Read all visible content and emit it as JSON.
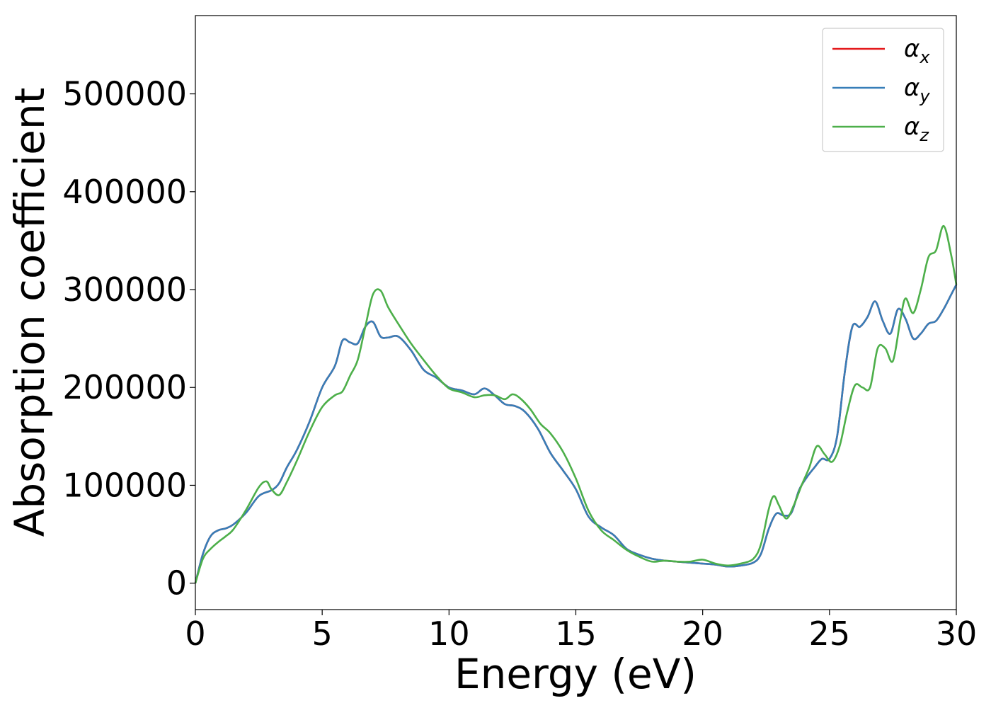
{
  "chart_data": {
    "type": "line",
    "title": "",
    "xlabel": "Energy (eV)",
    "ylabel": "Absorption coefficient",
    "xlim": [
      0,
      30
    ],
    "ylim": [
      -27000,
      580000
    ],
    "xticks": [
      0,
      5,
      10,
      15,
      20,
      25,
      30
    ],
    "xtick_labels": [
      "0",
      "5",
      "10",
      "15",
      "20",
      "25",
      "30"
    ],
    "yticks": [
      0,
      100000,
      200000,
      300000,
      400000,
      500000
    ],
    "ytick_labels": [
      "0",
      "100000",
      "200000",
      "300000",
      "400000",
      "500000"
    ],
    "grid": false,
    "legend_position": "top-right",
    "series": [
      {
        "name": "α",
        "subscript": "x",
        "color": "#e41a1c",
        "x": [
          0,
          0.3,
          0.6,
          0.9,
          1.2,
          1.5,
          2.0,
          2.5,
          3.0,
          3.3,
          3.6,
          4.0,
          4.5,
          5.0,
          5.5,
          5.8,
          6.1,
          6.4,
          6.7,
          7.0,
          7.3,
          7.6,
          8.0,
          8.5,
          9.0,
          9.5,
          10.0,
          10.5,
          11.0,
          11.4,
          11.8,
          12.2,
          12.6,
          13.0,
          13.5,
          14.0,
          14.5,
          15.0,
          15.5,
          16.0,
          16.5,
          17.0,
          17.5,
          18.0,
          18.5,
          19.0,
          19.5,
          20.0,
          20.5,
          21.0,
          21.5,
          22.0,
          22.3,
          22.6,
          22.9,
          23.2,
          23.5,
          23.8,
          24.1,
          24.4,
          24.7,
          25.0,
          25.3,
          25.6,
          25.9,
          26.2,
          26.5,
          26.8,
          27.1,
          27.4,
          27.7,
          28.0,
          28.3,
          28.6,
          28.9,
          29.2,
          29.5,
          29.8,
          30.0
        ],
        "values": [
          0,
          30000,
          48000,
          54000,
          56000,
          60000,
          72000,
          89000,
          95000,
          102000,
          118000,
          136000,
          165000,
          200000,
          222000,
          248000,
          246000,
          245000,
          262000,
          267000,
          252000,
          251000,
          252000,
          238000,
          218000,
          210000,
          200000,
          197000,
          193000,
          199000,
          192000,
          183000,
          181000,
          175000,
          158000,
          133000,
          115000,
          96000,
          68000,
          57000,
          49000,
          35000,
          29000,
          25000,
          23000,
          22000,
          21000,
          20000,
          19000,
          17000,
          18000,
          21000,
          30000,
          55000,
          71000,
          69000,
          72000,
          95000,
          108000,
          118000,
          127000,
          127000,
          150000,
          215000,
          262000,
          262000,
          272000,
          288000,
          268000,
          255000,
          280000,
          270000,
          250000,
          255000,
          265000,
          268000,
          280000,
          295000,
          305000
        ]
      },
      {
        "name": "α",
        "subscript": "y",
        "color": "#377eb8",
        "x": [
          0,
          0.3,
          0.6,
          0.9,
          1.2,
          1.5,
          2.0,
          2.5,
          3.0,
          3.3,
          3.6,
          4.0,
          4.5,
          5.0,
          5.5,
          5.8,
          6.1,
          6.4,
          6.7,
          7.0,
          7.3,
          7.6,
          8.0,
          8.5,
          9.0,
          9.5,
          10.0,
          10.5,
          11.0,
          11.4,
          11.8,
          12.2,
          12.6,
          13.0,
          13.5,
          14.0,
          14.5,
          15.0,
          15.5,
          16.0,
          16.5,
          17.0,
          17.5,
          18.0,
          18.5,
          19.0,
          19.5,
          20.0,
          20.5,
          21.0,
          21.5,
          22.0,
          22.3,
          22.6,
          22.9,
          23.2,
          23.5,
          23.8,
          24.1,
          24.4,
          24.7,
          25.0,
          25.3,
          25.6,
          25.9,
          26.2,
          26.5,
          26.8,
          27.1,
          27.4,
          27.7,
          28.0,
          28.3,
          28.6,
          28.9,
          29.2,
          29.5,
          29.8,
          30.0
        ],
        "values": [
          0,
          30000,
          48000,
          54000,
          56000,
          60000,
          72000,
          89000,
          95000,
          102000,
          118000,
          136000,
          165000,
          200000,
          222000,
          248000,
          246000,
          245000,
          262000,
          267000,
          252000,
          251000,
          252000,
          238000,
          218000,
          210000,
          200000,
          197000,
          193000,
          199000,
          192000,
          183000,
          181000,
          175000,
          158000,
          133000,
          115000,
          96000,
          68000,
          57000,
          49000,
          35000,
          29000,
          25000,
          23000,
          22000,
          21000,
          20000,
          19000,
          17000,
          18000,
          21000,
          30000,
          55000,
          71000,
          69000,
          72000,
          95000,
          108000,
          118000,
          127000,
          127000,
          150000,
          215000,
          262000,
          262000,
          272000,
          288000,
          268000,
          255000,
          280000,
          270000,
          250000,
          255000,
          265000,
          268000,
          280000,
          295000,
          305000
        ]
      },
      {
        "name": "α",
        "subscript": "z",
        "color": "#4daf4a",
        "x": [
          0,
          0.3,
          0.6,
          0.9,
          1.2,
          1.5,
          2.0,
          2.5,
          2.8,
          3.0,
          3.3,
          3.6,
          4.0,
          4.5,
          5.0,
          5.5,
          5.8,
          6.1,
          6.4,
          6.7,
          7.0,
          7.3,
          7.6,
          8.0,
          8.5,
          9.0,
          9.5,
          10.0,
          10.5,
          11.0,
          11.4,
          11.8,
          12.2,
          12.5,
          12.8,
          13.2,
          13.6,
          14.0,
          14.5,
          15.0,
          15.5,
          16.0,
          16.5,
          17.0,
          17.5,
          18.0,
          18.5,
          19.0,
          19.5,
          20.0,
          20.5,
          21.0,
          21.5,
          22.0,
          22.3,
          22.6,
          22.8,
          23.0,
          23.3,
          23.6,
          23.9,
          24.2,
          24.5,
          24.8,
          25.1,
          25.4,
          25.7,
          26.0,
          26.3,
          26.6,
          26.9,
          27.2,
          27.5,
          27.8,
          28.0,
          28.3,
          28.6,
          28.9,
          29.2,
          29.5,
          29.8,
          30.0
        ],
        "values": [
          0,
          25000,
          35000,
          42000,
          48000,
          55000,
          75000,
          98000,
          104000,
          96000,
          90000,
          103000,
          125000,
          155000,
          180000,
          192000,
          196000,
          212000,
          228000,
          262000,
          295000,
          299000,
          282000,
          265000,
          245000,
          228000,
          212000,
          199000,
          195000,
          190000,
          192000,
          192000,
          188000,
          193000,
          189000,
          178000,
          163000,
          153000,
          134000,
          107000,
          74000,
          54000,
          44000,
          34000,
          27000,
          22000,
          23000,
          22000,
          22000,
          24000,
          20000,
          18000,
          20000,
          25000,
          40000,
          75000,
          89000,
          80000,
          66000,
          80000,
          100000,
          118000,
          140000,
          132000,
          124000,
          140000,
          175000,
          202000,
          200000,
          200000,
          240000,
          240000,
          227000,
          270000,
          291000,
          276000,
          300000,
          333000,
          340000,
          365000,
          335000,
          305000
        ]
      }
    ]
  }
}
